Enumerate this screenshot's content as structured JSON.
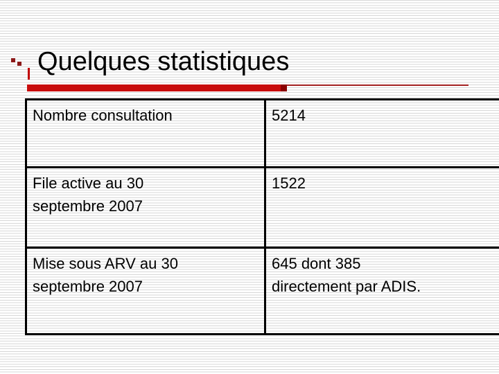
{
  "slide": {
    "title": "Quelques statistiques",
    "table": {
      "rows": [
        {
          "label": "Nombre consultation",
          "value": "5214"
        },
        {
          "label": "File active au 30\nseptembre 2007",
          "value": "1522"
        },
        {
          "label": "Mise sous ARV au 30\nseptembre 2007",
          "value": "645 dont 385\ndirectement par ADIS."
        }
      ]
    },
    "colors": {
      "accent_red": "#c90d0d",
      "accent_dark_red": "#8b0000",
      "deco_maroon": "#8b1a1a",
      "thin_line_red": "#a32020",
      "stripe_gray": "#d7d7d7",
      "text": "#000000",
      "background": "#ffffff"
    }
  }
}
